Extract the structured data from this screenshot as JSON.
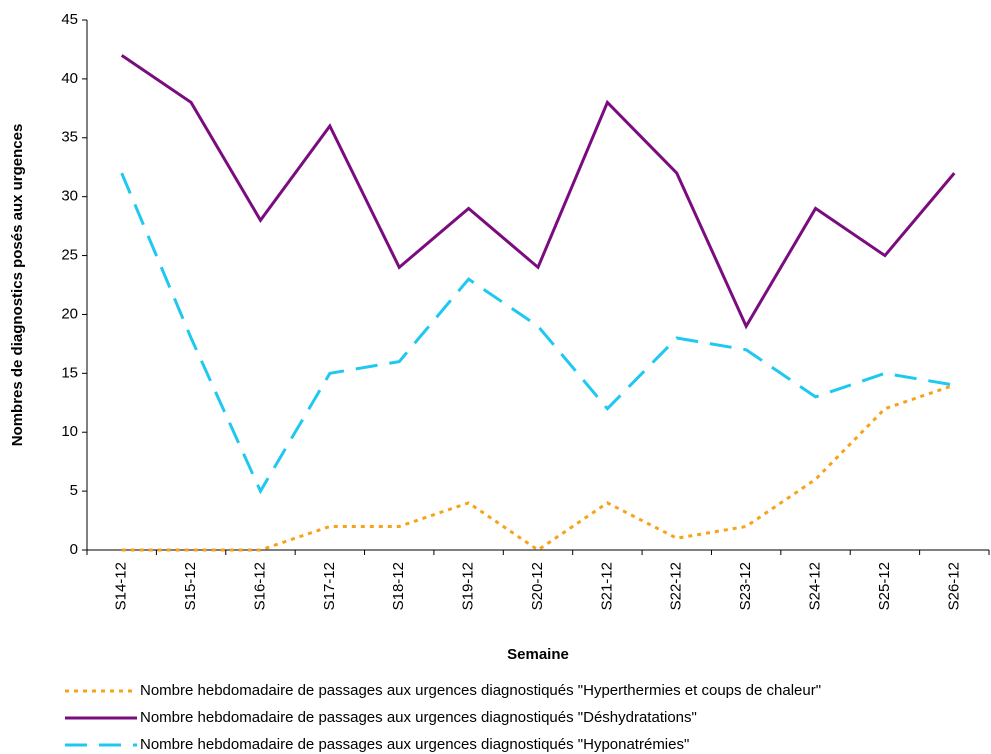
{
  "chart_data": {
    "type": "line",
    "x_label": "Semaine",
    "y_label": "Nombres de diagnostics posés aux urgences",
    "categories": [
      "S14-12",
      "S15-12",
      "S16-12",
      "S17-12",
      "S18-12",
      "S19-12",
      "S20-12",
      "S21-12",
      "S22-12",
      "S23-12",
      "S24-12",
      "S25-12",
      "S26-12"
    ],
    "series": [
      {
        "name": "Nombre hebdomadaire de passages aux urgences diagnostiqués \"Hyperthermies et coups de chaleur\"",
        "color": "#f7a21b",
        "style": "dotted",
        "values": [
          0,
          0,
          0,
          2,
          2,
          4,
          0,
          4,
          1,
          2,
          6,
          12,
          14
        ]
      },
      {
        "name": "Nombre hebdomadaire de passages aux urgences diagnostiqués \"Déshydratations\"",
        "color": "#7b0c7f",
        "style": "solid",
        "values": [
          42,
          38,
          28,
          36,
          24,
          29,
          24,
          38,
          32,
          19,
          29,
          25,
          32
        ]
      },
      {
        "name": "Nombre hebdomadaire de passages aux urgences diagnostiqués \"Hyponatrémies\"",
        "color": "#1ec8f0",
        "style": "dashed",
        "values": [
          32,
          18,
          5,
          15,
          16,
          23,
          19,
          12,
          18,
          17,
          13,
          15,
          14
        ]
      }
    ],
    "ylim": [
      0,
      45
    ],
    "yticks": [
      0,
      5,
      10,
      15,
      20,
      25,
      30,
      35,
      40,
      45
    ],
    "grid": false,
    "legend": "bottom"
  }
}
